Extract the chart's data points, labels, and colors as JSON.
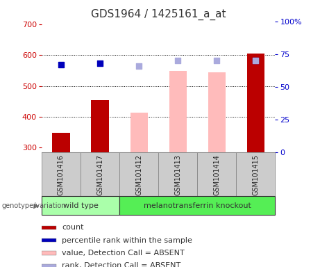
{
  "title": "GDS1964 / 1425161_a_at",
  "samples": [
    "GSM101416",
    "GSM101417",
    "GSM101412",
    "GSM101413",
    "GSM101414",
    "GSM101415"
  ],
  "ylim_left": [
    285,
    710
  ],
  "ylim_right": [
    0,
    100
  ],
  "left_ticks": [
    300,
    400,
    500,
    600,
    700
  ],
  "right_ticks": [
    0,
    25,
    50,
    75,
    100
  ],
  "right_tick_labels": [
    "0",
    "25",
    "50",
    "75",
    "100%"
  ],
  "bar_bottom": 285,
  "count_values": [
    348,
    455,
    null,
    null,
    null,
    605
  ],
  "count_color": "#bb0000",
  "count_absent_values": [
    null,
    null,
    413,
    548,
    545,
    null
  ],
  "count_absent_color": "#ffbbbb",
  "rank_solid_values": [
    67,
    68,
    null,
    null,
    null,
    70
  ],
  "rank_solid_color": "#0000bb",
  "rank_absent_values": [
    null,
    null,
    66,
    70,
    70,
    70
  ],
  "rank_absent_color": "#aaaadd",
  "bar_width": 0.45,
  "marker_size": 40,
  "legend_entries": [
    {
      "color": "#bb0000",
      "label": "count"
    },
    {
      "color": "#0000bb",
      "label": "percentile rank within the sample"
    },
    {
      "color": "#ffbbbb",
      "label": "value, Detection Call = ABSENT"
    },
    {
      "color": "#aaaadd",
      "label": "rank, Detection Call = ABSENT"
    }
  ],
  "left_color": "#cc0000",
  "right_color": "#0000cc",
  "grid_color": "#000000",
  "font_size_title": 11,
  "font_size_ticks": 8,
  "font_size_legend": 8,
  "font_size_genotype": 8,
  "font_size_sample": 7,
  "wt_color": "#aaffaa",
  "ko_color": "#55ee55",
  "cell_color": "#cccccc",
  "cell_edge": "#888888"
}
